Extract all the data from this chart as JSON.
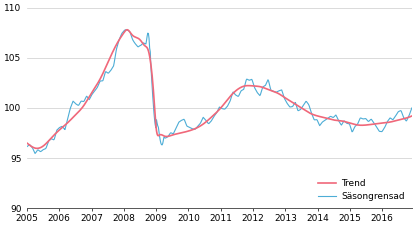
{
  "title": "",
  "ylabel": "",
  "xlabel": "",
  "ylim": [
    90,
    110
  ],
  "xlim_start": 2005.0,
  "xlim_end": 2016.917,
  "yticks": [
    90,
    95,
    100,
    105,
    110
  ],
  "xtick_labels": [
    "2005",
    "2006",
    "2007",
    "2008",
    "2009",
    "2010",
    "2011",
    "2012",
    "2013",
    "2014",
    "2015",
    "2016"
  ],
  "trend_color": "#f0687a",
  "seasonal_color": "#4dadd6",
  "legend_trend": "Trend",
  "legend_seasonal": "Säsongrensad",
  "background_color": "#ffffff",
  "grid_color": "#cccccc",
  "linewidth_trend": 1.2,
  "linewidth_seasonal": 0.8
}
